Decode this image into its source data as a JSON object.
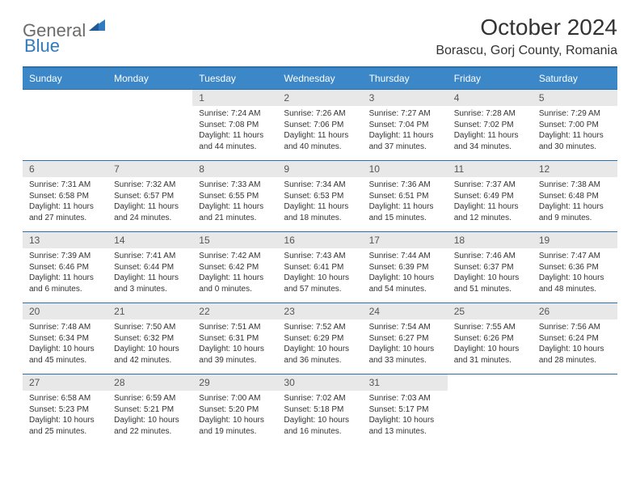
{
  "brand": {
    "name_gray": "General",
    "name_blue": "Blue"
  },
  "title": "October 2024",
  "location": "Borascu, Gorj County, Romania",
  "colors": {
    "header_bg": "#3b87c8",
    "header_border": "#2f6fa8",
    "daynum_bg": "#e8e8e8",
    "text": "#333333",
    "logo_gray": "#6b6b6b",
    "logo_blue": "#2f7abf"
  },
  "days_of_week": [
    "Sunday",
    "Monday",
    "Tuesday",
    "Wednesday",
    "Thursday",
    "Friday",
    "Saturday"
  ],
  "weeks": [
    [
      null,
      null,
      {
        "n": "1",
        "sunrise": "7:24 AM",
        "sunset": "7:08 PM",
        "daylight": "11 hours and 44 minutes."
      },
      {
        "n": "2",
        "sunrise": "7:26 AM",
        "sunset": "7:06 PM",
        "daylight": "11 hours and 40 minutes."
      },
      {
        "n": "3",
        "sunrise": "7:27 AM",
        "sunset": "7:04 PM",
        "daylight": "11 hours and 37 minutes."
      },
      {
        "n": "4",
        "sunrise": "7:28 AM",
        "sunset": "7:02 PM",
        "daylight": "11 hours and 34 minutes."
      },
      {
        "n": "5",
        "sunrise": "7:29 AM",
        "sunset": "7:00 PM",
        "daylight": "11 hours and 30 minutes."
      }
    ],
    [
      {
        "n": "6",
        "sunrise": "7:31 AM",
        "sunset": "6:58 PM",
        "daylight": "11 hours and 27 minutes."
      },
      {
        "n": "7",
        "sunrise": "7:32 AM",
        "sunset": "6:57 PM",
        "daylight": "11 hours and 24 minutes."
      },
      {
        "n": "8",
        "sunrise": "7:33 AM",
        "sunset": "6:55 PM",
        "daylight": "11 hours and 21 minutes."
      },
      {
        "n": "9",
        "sunrise": "7:34 AM",
        "sunset": "6:53 PM",
        "daylight": "11 hours and 18 minutes."
      },
      {
        "n": "10",
        "sunrise": "7:36 AM",
        "sunset": "6:51 PM",
        "daylight": "11 hours and 15 minutes."
      },
      {
        "n": "11",
        "sunrise": "7:37 AM",
        "sunset": "6:49 PM",
        "daylight": "11 hours and 12 minutes."
      },
      {
        "n": "12",
        "sunrise": "7:38 AM",
        "sunset": "6:48 PM",
        "daylight": "11 hours and 9 minutes."
      }
    ],
    [
      {
        "n": "13",
        "sunrise": "7:39 AM",
        "sunset": "6:46 PM",
        "daylight": "11 hours and 6 minutes."
      },
      {
        "n": "14",
        "sunrise": "7:41 AM",
        "sunset": "6:44 PM",
        "daylight": "11 hours and 3 minutes."
      },
      {
        "n": "15",
        "sunrise": "7:42 AM",
        "sunset": "6:42 PM",
        "daylight": "11 hours and 0 minutes."
      },
      {
        "n": "16",
        "sunrise": "7:43 AM",
        "sunset": "6:41 PM",
        "daylight": "10 hours and 57 minutes."
      },
      {
        "n": "17",
        "sunrise": "7:44 AM",
        "sunset": "6:39 PM",
        "daylight": "10 hours and 54 minutes."
      },
      {
        "n": "18",
        "sunrise": "7:46 AM",
        "sunset": "6:37 PM",
        "daylight": "10 hours and 51 minutes."
      },
      {
        "n": "19",
        "sunrise": "7:47 AM",
        "sunset": "6:36 PM",
        "daylight": "10 hours and 48 minutes."
      }
    ],
    [
      {
        "n": "20",
        "sunrise": "7:48 AM",
        "sunset": "6:34 PM",
        "daylight": "10 hours and 45 minutes."
      },
      {
        "n": "21",
        "sunrise": "7:50 AM",
        "sunset": "6:32 PM",
        "daylight": "10 hours and 42 minutes."
      },
      {
        "n": "22",
        "sunrise": "7:51 AM",
        "sunset": "6:31 PM",
        "daylight": "10 hours and 39 minutes."
      },
      {
        "n": "23",
        "sunrise": "7:52 AM",
        "sunset": "6:29 PM",
        "daylight": "10 hours and 36 minutes."
      },
      {
        "n": "24",
        "sunrise": "7:54 AM",
        "sunset": "6:27 PM",
        "daylight": "10 hours and 33 minutes."
      },
      {
        "n": "25",
        "sunrise": "7:55 AM",
        "sunset": "6:26 PM",
        "daylight": "10 hours and 31 minutes."
      },
      {
        "n": "26",
        "sunrise": "7:56 AM",
        "sunset": "6:24 PM",
        "daylight": "10 hours and 28 minutes."
      }
    ],
    [
      {
        "n": "27",
        "sunrise": "6:58 AM",
        "sunset": "5:23 PM",
        "daylight": "10 hours and 25 minutes."
      },
      {
        "n": "28",
        "sunrise": "6:59 AM",
        "sunset": "5:21 PM",
        "daylight": "10 hours and 22 minutes."
      },
      {
        "n": "29",
        "sunrise": "7:00 AM",
        "sunset": "5:20 PM",
        "daylight": "10 hours and 19 minutes."
      },
      {
        "n": "30",
        "sunrise": "7:02 AM",
        "sunset": "5:18 PM",
        "daylight": "10 hours and 16 minutes."
      },
      {
        "n": "31",
        "sunrise": "7:03 AM",
        "sunset": "5:17 PM",
        "daylight": "10 hours and 13 minutes."
      },
      null,
      null
    ]
  ],
  "labels": {
    "sunrise": "Sunrise: ",
    "sunset": "Sunset: ",
    "daylight": "Daylight: "
  }
}
